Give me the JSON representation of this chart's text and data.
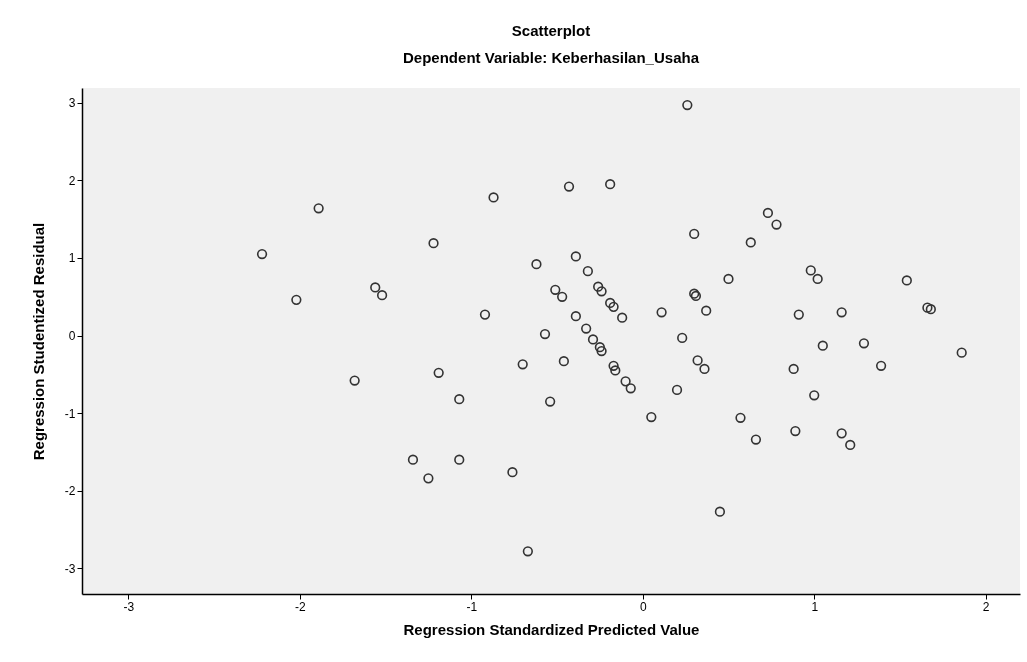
{
  "chart_data": {
    "type": "scatter",
    "title": "Scatterplot",
    "subtitle": "Dependent Variable: Keberhasilan_Usaha",
    "xlabel": "Regression Standardized Predicted Value",
    "ylabel": "Regression Studentized Residual",
    "xlim": [
      -3.27,
      2.2
    ],
    "ylim": [
      -3.33,
      3.19
    ],
    "xticks": [
      -3,
      -2,
      -1,
      0,
      1,
      2
    ],
    "yticks": [
      -3,
      -2,
      -1,
      0,
      1,
      2,
      3
    ],
    "marker": "circle",
    "grid": false,
    "color": "#333333",
    "x": [
      -2.22,
      -1.89,
      -2.02,
      -1.56,
      -1.52,
      -1.68,
      0.26,
      -0.43,
      -0.19,
      -0.87,
      0.3,
      -1.22,
      -0.62,
      -0.39,
      -0.32,
      -0.26,
      -0.24,
      -0.51,
      -0.47,
      -0.19,
      -0.17,
      -0.12,
      0.3,
      0.31,
      -0.92,
      0.11,
      -0.39,
      -0.33,
      -0.57,
      0.23,
      -0.29,
      -0.25,
      -0.24,
      -0.7,
      -0.46,
      -0.17,
      -0.16,
      -0.1,
      -0.07,
      -1.19,
      0.32,
      0.36,
      0.2,
      -1.07,
      -0.54,
      0.05,
      -1.34,
      -1.07,
      -1.25,
      -0.76,
      -0.67,
      0.73,
      0.78,
      0.63,
      0.5,
      0.98,
      1.02,
      1.54,
      1.66,
      1.68,
      0.37,
      0.91,
      1.16,
      1.05,
      1.29,
      1.86,
      0.88,
      1.39,
      1.0,
      0.57,
      0.66,
      0.89,
      1.16,
      1.21,
      0.45
    ],
    "values": [
      1.05,
      1.64,
      0.46,
      0.62,
      0.52,
      -0.58,
      2.97,
      1.92,
      1.95,
      1.78,
      1.31,
      1.19,
      0.92,
      1.02,
      0.83,
      0.63,
      0.57,
      0.59,
      0.5,
      0.42,
      0.37,
      0.23,
      0.54,
      0.51,
      0.27,
      0.3,
      0.25,
      0.09,
      0.02,
      -0.03,
      -0.05,
      -0.15,
      -0.2,
      -0.37,
      -0.33,
      -0.39,
      -0.45,
      -0.59,
      -0.68,
      -0.48,
      -0.32,
      -0.43,
      -0.7,
      -0.82,
      -0.85,
      -1.05,
      -1.6,
      -1.6,
      -1.84,
      -1.76,
      -2.78,
      1.58,
      1.43,
      1.2,
      0.73,
      0.84,
      0.73,
      0.71,
      0.36,
      0.34,
      0.32,
      0.27,
      0.3,
      -0.13,
      -0.1,
      -0.22,
      -0.43,
      -0.39,
      -0.77,
      -1.06,
      -1.34,
      -1.23,
      -1.26,
      -1.41,
      -2.27
    ]
  }
}
